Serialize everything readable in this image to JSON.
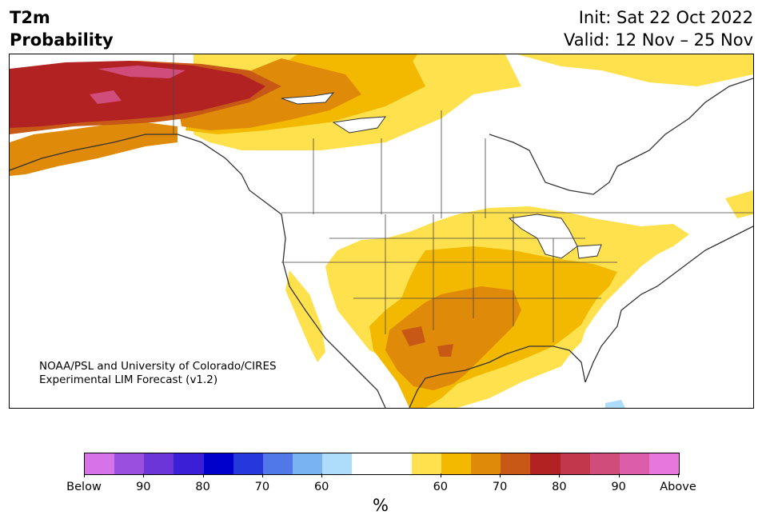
{
  "title": {
    "variable": "T2m",
    "subtitle": "Probability",
    "init": "Init: Sat 22 Oct 2022",
    "valid": "Valid: 12 Nov – 25 Nov"
  },
  "credit": {
    "line1": "NOAA/PSL and University of Colorado/CIRES",
    "line2": "Experimental LIM Forecast (v1.2)"
  },
  "colorbar": {
    "unit": "%",
    "colors": [
      "#d673e8",
      "#9a4fdf",
      "#6c35d8",
      "#3a1fd6",
      "#0000cc",
      "#2538dc",
      "#5078e8",
      "#7ab3f2",
      "#aedcfb",
      "#ffffff",
      "#ffffff",
      "#ffe14d",
      "#f2b900",
      "#e08a0a",
      "#c85816",
      "#b22222",
      "#c2374a",
      "#d04c7a",
      "#dc5eab",
      "#e877dc"
    ],
    "tick_labels": [
      "Below",
      "90",
      "80",
      "70",
      "60",
      "60",
      "70",
      "80",
      "90",
      "Above"
    ]
  },
  "legend_categories": {
    "below": [
      "Below",
      "90",
      "80",
      "70",
      "60"
    ],
    "above": [
      "60",
      "70",
      "80",
      "90",
      "Above"
    ]
  }
}
